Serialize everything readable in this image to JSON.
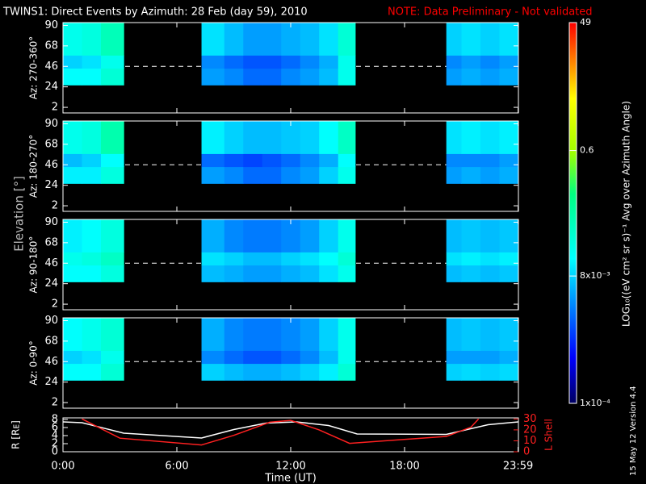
{
  "header": {
    "title": "TWINS1: Direct Events by Azimuth: 28 Feb (day  59), 2010",
    "note": "NOTE: Data Preliminary - Not validated"
  },
  "elevation_label": "Elevation [°]",
  "colorscale": {
    "label": "LOG₁₀((eV cm² sr s)⁻¹ Avg over Azimuth Angle)",
    "scale": "log",
    "lim": [
      0.0001,
      49
    ],
    "ticks": [
      {
        "value": 0.0001,
        "label": "1x10⁻⁴"
      },
      {
        "value": 0.008,
        "label": "8x10⁻³"
      },
      0.6,
      49
    ]
  },
  "footer": "15 May 12   Version 4.4",
  "chart_data": [
    {
      "type": "heatmap",
      "ylabel": "Az: 270-360°",
      "xlim": [
        0,
        24
      ],
      "ylim": [
        -4,
        93
      ],
      "yticks": [
        2,
        24,
        46,
        68,
        90
      ],
      "dashed_line": 46,
      "x_bins": [
        0,
        1,
        2,
        3.2,
        7.3,
        8.5,
        9.5,
        10.5,
        11.5,
        12.5,
        13.5,
        14.5,
        15.4,
        20.2,
        21,
        22,
        23,
        24
      ],
      "y_bins": [
        26,
        44,
        58,
        93
      ],
      "values": [
        [
          0.015,
          0.015,
          0.03,
          null,
          0.004,
          0.003,
          0.002,
          0.002,
          0.003,
          0.004,
          0.006,
          0.02,
          null,
          0.004,
          0.005,
          0.004,
          0.005
        ],
        [
          0.008,
          0.01,
          0.02,
          null,
          0.003,
          0.002,
          0.0015,
          0.0015,
          0.002,
          0.003,
          0.005,
          0.02,
          null,
          0.003,
          0.004,
          0.003,
          0.004
        ],
        [
          0.02,
          0.025,
          0.05,
          null,
          0.01,
          0.006,
          0.004,
          0.004,
          0.005,
          0.006,
          0.01,
          0.03,
          null,
          0.008,
          0.01,
          0.008,
          0.01
        ]
      ]
    },
    {
      "type": "heatmap",
      "ylabel": "Az: 180-270°",
      "xlim": [
        0,
        24
      ],
      "ylim": [
        -4,
        93
      ],
      "yticks": [
        2,
        24,
        46,
        68,
        90
      ],
      "dashed_line": 46,
      "x_bins": [
        0,
        1,
        2,
        3.2,
        7.3,
        8.5,
        9.5,
        10.5,
        11.5,
        12.5,
        13.5,
        14.5,
        15.4,
        20.2,
        21,
        22,
        23,
        24
      ],
      "y_bins": [
        26,
        44,
        58,
        93
      ],
      "values": [
        [
          0.012,
          0.012,
          0.025,
          null,
          0.004,
          0.003,
          0.002,
          0.002,
          0.003,
          0.004,
          0.008,
          0.02,
          null,
          0.004,
          0.005,
          0.004,
          0.005
        ],
        [
          0.006,
          0.008,
          0.015,
          null,
          0.002,
          0.0015,
          0.0012,
          0.0015,
          0.002,
          0.003,
          0.005,
          0.015,
          null,
          0.003,
          0.003,
          0.003,
          0.004
        ],
        [
          0.02,
          0.025,
          0.06,
          null,
          0.012,
          0.008,
          0.006,
          0.006,
          0.007,
          0.008,
          0.015,
          0.04,
          null,
          0.01,
          0.012,
          0.01,
          0.012
        ]
      ]
    },
    {
      "type": "heatmap",
      "ylabel": "Az: 90-180°",
      "xlim": [
        0,
        24
      ],
      "ylim": [
        -4,
        93
      ],
      "yticks": [
        2,
        24,
        46,
        68,
        90
      ],
      "dashed_line": 46,
      "x_bins": [
        0,
        1,
        2,
        3.2,
        7.3,
        8.5,
        9.5,
        10.5,
        11.5,
        12.5,
        13.5,
        14.5,
        15.4,
        20.2,
        21,
        22,
        23,
        24
      ],
      "y_bins": [
        26,
        44,
        58,
        93
      ],
      "values": [
        [
          0.015,
          0.015,
          0.025,
          null,
          0.006,
          0.005,
          0.004,
          0.004,
          0.005,
          0.006,
          0.01,
          0.02,
          null,
          0.006,
          0.007,
          0.006,
          0.007
        ],
        [
          0.02,
          0.025,
          0.04,
          null,
          0.01,
          0.008,
          0.006,
          0.006,
          0.008,
          0.01,
          0.015,
          0.03,
          null,
          0.01,
          0.012,
          0.01,
          0.012
        ],
        [
          0.012,
          0.015,
          0.025,
          null,
          0.005,
          0.003,
          0.0025,
          0.0025,
          0.003,
          0.004,
          0.008,
          0.02,
          null,
          0.006,
          0.007,
          0.006,
          0.007
        ]
      ]
    },
    {
      "type": "heatmap",
      "ylabel": "Az: 0-90°",
      "xlim": [
        0,
        24
      ],
      "ylim": [
        -4,
        93
      ],
      "yticks": [
        2,
        24,
        46,
        68,
        90
      ],
      "dashed_line": 46,
      "x_bins": [
        0,
        1,
        2,
        3.2,
        7.3,
        8.5,
        9.5,
        10.5,
        11.5,
        12.5,
        13.5,
        14.5,
        15.4,
        20.2,
        21,
        22,
        23,
        24
      ],
      "y_bins": [
        26,
        44,
        58,
        93
      ],
      "values": [
        [
          0.015,
          0.015,
          0.03,
          null,
          0.008,
          0.006,
          0.005,
          0.005,
          0.006,
          0.008,
          0.012,
          0.03,
          null,
          0.008,
          0.009,
          0.008,
          0.009
        ],
        [
          0.008,
          0.01,
          0.02,
          null,
          0.003,
          0.002,
          0.0015,
          0.0015,
          0.002,
          0.003,
          0.006,
          0.02,
          null,
          0.004,
          0.004,
          0.004,
          0.005
        ],
        [
          0.015,
          0.02,
          0.03,
          null,
          0.005,
          0.003,
          0.0025,
          0.0025,
          0.003,
          0.004,
          0.008,
          0.02,
          null,
          0.006,
          0.007,
          0.006,
          0.007
        ]
      ]
    },
    {
      "type": "line",
      "xlabel": "Time (UT)",
      "xlim": [
        0,
        24
      ],
      "xticks": [
        {
          "value": 0,
          "label": "0:00"
        },
        {
          "value": 6,
          "label": "6:00"
        },
        {
          "value": 12,
          "label": "12:00"
        },
        {
          "value": 18,
          "label": "18:00"
        },
        {
          "value": 23.983,
          "label": "23:59"
        }
      ],
      "ylabel": "R [Rᴇ]",
      "ylim": [
        0,
        8.4
      ],
      "yticks": [
        0,
        2,
        4,
        6,
        8
      ],
      "y2label": "L Shell",
      "y2lim": [
        0,
        31
      ],
      "y2ticks": [
        0,
        10,
        20,
        30
      ],
      "series": [
        {
          "color": "#ffffff",
          "x": [
            0,
            1,
            3.2,
            7.3,
            9,
            10.7,
            12.3,
            14,
            15.5,
            20.2,
            22.4,
            24
          ],
          "values": [
            7.4,
            7.2,
            4.6,
            3.4,
            5.5,
            7.1,
            7.4,
            6.5,
            4.4,
            4.3,
            6.7,
            7.4
          ]
        },
        {
          "color": "#ff2020",
          "axis": "y2",
          "x": [
            1.0,
            3.0,
            7.3,
            9,
            10.9,
            12,
            13.5,
            15.1,
            20.2,
            21.5,
            21.9
          ],
          "values": [
            30,
            12.4,
            6.2,
            15,
            27,
            28.7,
            20,
            7.7,
            14,
            22.5,
            30
          ]
        }
      ]
    }
  ]
}
